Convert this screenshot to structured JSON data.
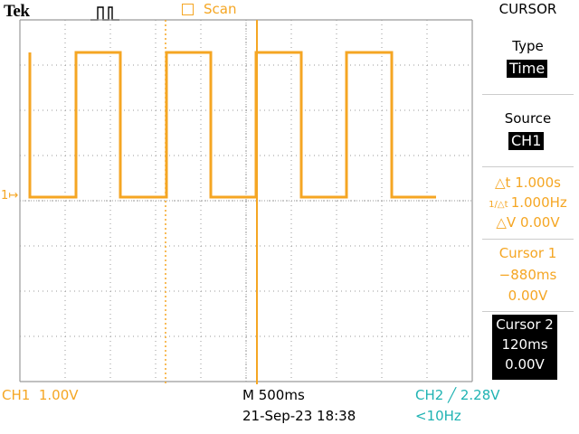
{
  "header": {
    "brand": "Tek",
    "trigger_icon": "trigger-edge-icon",
    "acq_mode": "Scan"
  },
  "menu": {
    "title": "CURSOR",
    "type_label": "Type",
    "type_value": "Time",
    "source_label": "Source",
    "source_value": "CH1",
    "delta_t": "1.000s",
    "inv_delta_t": "1.000Hz",
    "delta_v": "0.00V",
    "cursor1_label": "Cursor 1",
    "cursor1_time": "−880ms",
    "cursor1_volt": "0.00V",
    "cursor2_label": "Cursor 2",
    "cursor2_time": "120ms",
    "cursor2_volt": "0.00V"
  },
  "status": {
    "ch1": "CH1  1.00V",
    "timebase": "M 500ms",
    "datetime": "21-Sep-23 18:38",
    "ch2_trigger": "CH2 ╱ 2.28V",
    "trigger_freq": "<10Hz"
  },
  "channel_marker": "1↦",
  "colors": {
    "ch1": "#f5a623",
    "ch2": "#1fb3b3",
    "grid": "#9a9a9a"
  }
}
